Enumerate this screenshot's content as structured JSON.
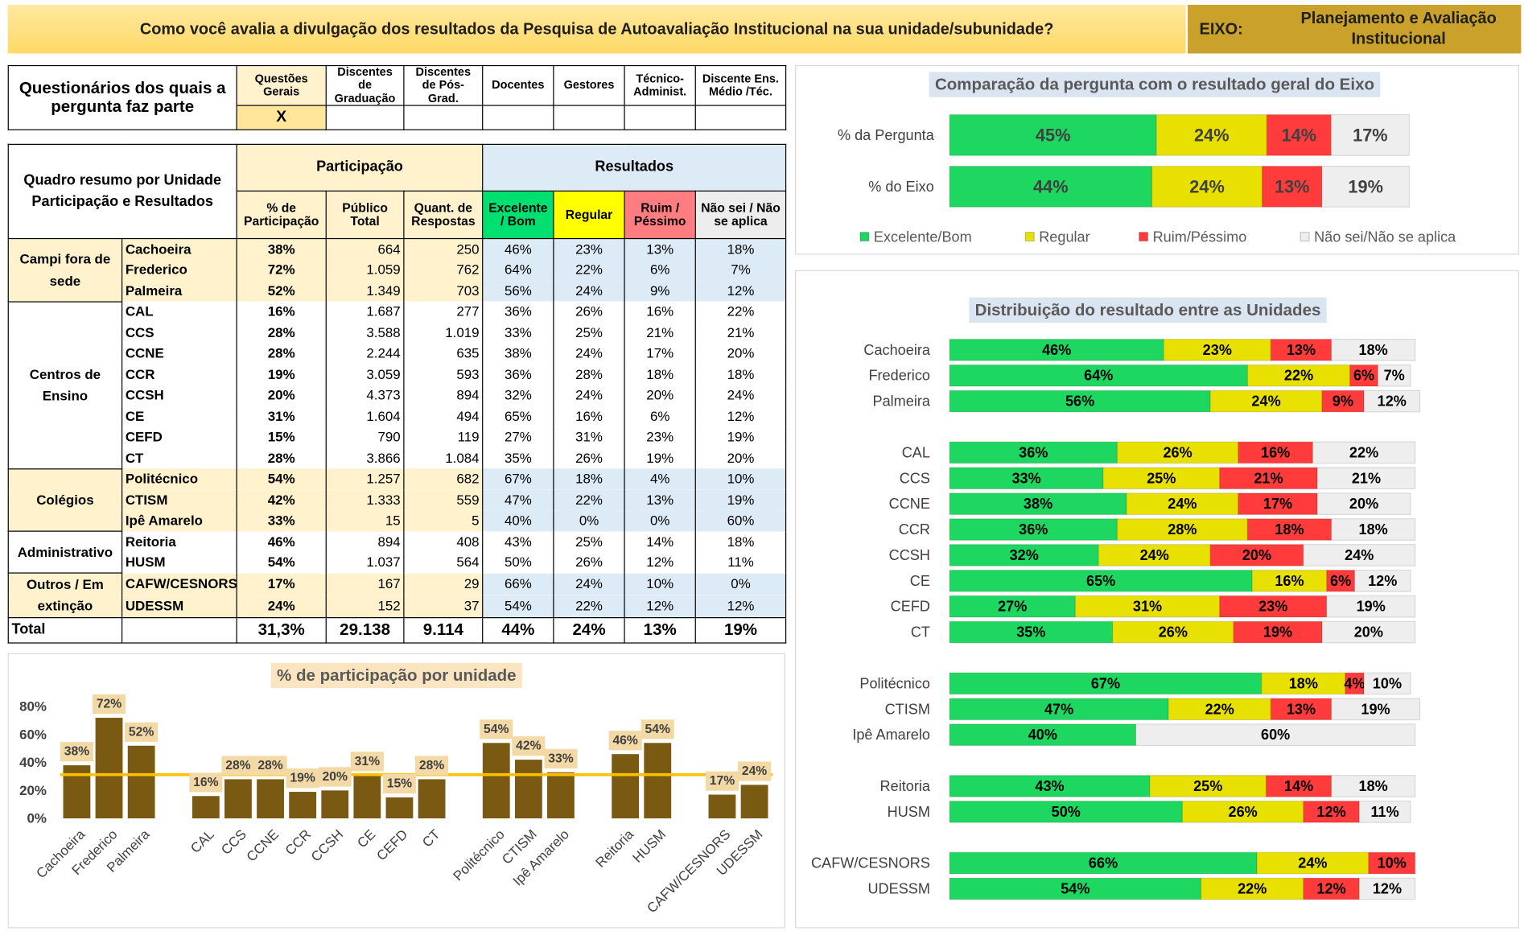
{
  "header": {
    "title": "Como você avalia a divulgação dos resultados da Pesquisa de Autoavaliação Institucional na sua unidade/subunidade?",
    "eixo_label": "EIXO:",
    "eixo": "Planejamento e Avaliação Institucional"
  },
  "questionnaires": {
    "label": "Questionários dos quais a pergunta faz parte",
    "columns": [
      "Questões Gerais",
      "Discentes de Graduação",
      "Discentes de Pós-Grad.",
      "Docentes",
      "Gestores",
      "Técnico-Administ.",
      "Discente Ens. Médio /Téc."
    ],
    "marks": [
      "X",
      null,
      null,
      null,
      null,
      null,
      null
    ]
  },
  "summary": {
    "title": "Quadro resumo por Unidade Participação e Resultados",
    "group_headers": [
      "Participação",
      "Resultados"
    ],
    "columns": [
      "% de Participação",
      "Público Total",
      "Quant. de Respostas",
      "Excelente / Bom",
      "Regular",
      "Ruim / Péssimo",
      "Não sei / Não se aplica"
    ],
    "groups": [
      {
        "name": "Campi fora de sede",
        "rows": [
          [
            "Cachoeira",
            "38%",
            "664",
            "250",
            "46%",
            "23%",
            "13%",
            "18%"
          ],
          [
            "Frederico",
            "72%",
            "1.059",
            "762",
            "64%",
            "22%",
            "6%",
            "7%"
          ],
          [
            "Palmeira",
            "52%",
            "1.349",
            "703",
            "56%",
            "24%",
            "9%",
            "12%"
          ]
        ]
      },
      {
        "name": "Centros de Ensino",
        "rows": [
          [
            "CAL",
            "16%",
            "1.687",
            "277",
            "36%",
            "26%",
            "16%",
            "22%"
          ],
          [
            "CCS",
            "28%",
            "3.588",
            "1.019",
            "33%",
            "25%",
            "21%",
            "21%"
          ],
          [
            "CCNE",
            "28%",
            "2.244",
            "635",
            "38%",
            "24%",
            "17%",
            "20%"
          ],
          [
            "CCR",
            "19%",
            "3.059",
            "593",
            "36%",
            "28%",
            "18%",
            "18%"
          ],
          [
            "CCSH",
            "20%",
            "4.373",
            "894",
            "32%",
            "24%",
            "20%",
            "24%"
          ],
          [
            "CE",
            "31%",
            "1.604",
            "494",
            "65%",
            "16%",
            "6%",
            "12%"
          ],
          [
            "CEFD",
            "15%",
            "790",
            "119",
            "27%",
            "31%",
            "23%",
            "19%"
          ],
          [
            "CT",
            "28%",
            "3.866",
            "1.084",
            "35%",
            "26%",
            "19%",
            "20%"
          ]
        ]
      },
      {
        "name": "Colégios",
        "rows": [
          [
            "Politécnico",
            "54%",
            "1.257",
            "682",
            "67%",
            "18%",
            "4%",
            "10%"
          ],
          [
            "CTISM",
            "42%",
            "1.333",
            "559",
            "47%",
            "22%",
            "13%",
            "19%"
          ],
          [
            "Ipê Amarelo",
            "33%",
            "15",
            "5",
            "40%",
            "0%",
            "0%",
            "60%"
          ]
        ]
      },
      {
        "name": "Administrativo",
        "rows": [
          [
            "Reitoria",
            "46%",
            "894",
            "408",
            "43%",
            "25%",
            "14%",
            "18%"
          ],
          [
            "HUSM",
            "54%",
            "1.037",
            "564",
            "50%",
            "26%",
            "12%",
            "11%"
          ]
        ]
      },
      {
        "name": "Outros / Em extinção",
        "rows": [
          [
            "CAFW/CESNORS",
            "17%",
            "167",
            "29",
            "66%",
            "24%",
            "10%",
            "0%"
          ],
          [
            "UDESSM",
            "24%",
            "152",
            "37",
            "54%",
            "22%",
            "12%",
            "12%"
          ]
        ]
      }
    ],
    "total": {
      "label": "Total",
      "cells": [
        "31,3%",
        "29.138",
        "9.114",
        "44%",
        "24%",
        "13%",
        "19%"
      ]
    }
  },
  "chart_data": [
    {
      "type": "bar",
      "orientation": "horizontal",
      "stacked": true,
      "title": "Comparação da pergunta com o resultado geral do Eixo",
      "categories": [
        "% da Pergunta",
        "% do Eixo"
      ],
      "xlim": [
        0,
        100
      ],
      "legend": "bottom",
      "series": [
        {
          "name": "Excelente/Bom",
          "color": "#1ed760",
          "values": [
            45,
            44
          ],
          "value_labels": [
            "45%",
            "44%"
          ]
        },
        {
          "name": "Regular",
          "color": "#e8e000",
          "values": [
            24,
            24
          ],
          "value_labels": [
            "24%",
            "24%"
          ]
        },
        {
          "name": "Ruim/Péssimo",
          "color": "#ff3b3b",
          "values": [
            14,
            13
          ],
          "value_labels": [
            "14%",
            "13%"
          ]
        },
        {
          "name": "Não sei/Não se aplica",
          "color": "#eeeeee",
          "values": [
            17,
            19
          ],
          "value_labels": [
            "17%",
            "19%"
          ]
        }
      ]
    },
    {
      "type": "bar",
      "orientation": "vertical",
      "title": "% de participação por unidade",
      "color": "#7a5a12",
      "label_bg": "#f3d9a6",
      "line_color": "#ffc000",
      "categories": [
        "Cachoeira",
        "Frederico",
        "Palmeira",
        null,
        "CAL",
        "CCS",
        "CCNE",
        "CCR",
        "CCSH",
        "CE",
        "CEFD",
        "CT",
        null,
        "Politécnico",
        "CTISM",
        "Ipê Amarelo",
        null,
        "Reitoria",
        "HUSM",
        null,
        "CAFW/CESNORS",
        "UDESSM"
      ],
      "values": [
        38,
        72,
        52,
        null,
        16,
        28,
        28,
        19,
        20,
        31,
        15,
        28,
        null,
        54,
        42,
        33,
        null,
        46,
        54,
        null,
        17,
        24
      ],
      "value_labels": [
        "38%",
        "72%",
        "52%",
        null,
        "16%",
        "28%",
        "28%",
        "19%",
        "20%",
        "31%",
        "15%",
        "28%",
        null,
        "54%",
        "42%",
        "33%",
        null,
        "46%",
        "54%",
        null,
        "17%",
        "24%"
      ],
      "average_line": 31.3,
      "ylim": [
        0,
        80
      ],
      "yticks": [
        {
          "value": 0,
          "label": "0%"
        },
        {
          "value": 20,
          "label": "20%"
        },
        {
          "value": 40,
          "label": "40%"
        },
        {
          "value": 60,
          "label": "60%"
        },
        {
          "value": 80,
          "label": "80%"
        }
      ]
    },
    {
      "type": "bar",
      "orientation": "horizontal",
      "stacked": true,
      "title": "Distribuição do resultado entre as Unidades",
      "xlim": [
        0,
        100
      ],
      "categories": [
        "Cachoeira",
        "Frederico",
        "Palmeira",
        null,
        "CAL",
        "CCS",
        "CCNE",
        "CCR",
        "CCSH",
        "CE",
        "CEFD",
        "CT",
        null,
        "Politécnico",
        "CTISM",
        "Ipê Amarelo",
        null,
        "Reitoria",
        "HUSM",
        null,
        "CAFW/CESNORS",
        "UDESSM"
      ],
      "series": [
        {
          "color": "#1ed760",
          "values": [
            46,
            64,
            56,
            null,
            36,
            33,
            38,
            36,
            32,
            65,
            27,
            35,
            null,
            67,
            47,
            40,
            null,
            43,
            50,
            null,
            66,
            54
          ],
          "value_labels": [
            "46%",
            "64%",
            "56%",
            null,
            "36%",
            "33%",
            "38%",
            "36%",
            "32%",
            "65%",
            "27%",
            "35%",
            null,
            "67%",
            "47%",
            "40%",
            null,
            "43%",
            "50%",
            null,
            "66%",
            "54%"
          ]
        },
        {
          "color": "#e8e000",
          "values": [
            23,
            22,
            24,
            null,
            26,
            25,
            24,
            28,
            24,
            16,
            31,
            26,
            null,
            18,
            22,
            0,
            null,
            25,
            26,
            null,
            24,
            22
          ],
          "value_labels": [
            "23%",
            "22%",
            "24%",
            null,
            "26%",
            "25%",
            "24%",
            "28%",
            "24%",
            "16%",
            "31%",
            "26%",
            null,
            "18%",
            "22%",
            null,
            null,
            "25%",
            "26%",
            null,
            "24%",
            "22%"
          ]
        },
        {
          "color": "#ff3b3b",
          "values": [
            13,
            6,
            9,
            null,
            16,
            21,
            17,
            18,
            20,
            6,
            23,
            19,
            null,
            4,
            13,
            0,
            null,
            14,
            12,
            null,
            10,
            12
          ],
          "value_labels": [
            "13%",
            "6%",
            "9%",
            null,
            "16%",
            "21%",
            "17%",
            "18%",
            "20%",
            "6%",
            "23%",
            "19%",
            null,
            "4%",
            "13%",
            null,
            null,
            "14%",
            "12%",
            null,
            "10%",
            "12%"
          ]
        },
        {
          "color": "#eeeeee",
          "values": [
            18,
            7,
            12,
            null,
            22,
            21,
            20,
            18,
            24,
            12,
            19,
            20,
            null,
            10,
            19,
            60,
            null,
            18,
            11,
            null,
            0,
            12
          ],
          "value_labels": [
            "18%",
            "7%",
            "12%",
            null,
            "22%",
            "21%",
            "20%",
            "18%",
            "24%",
            "12%",
            "19%",
            "20%",
            null,
            "10%",
            "19%",
            "60%",
            null,
            "18%",
            "11%",
            null,
            null,
            "12%"
          ]
        }
      ]
    }
  ]
}
